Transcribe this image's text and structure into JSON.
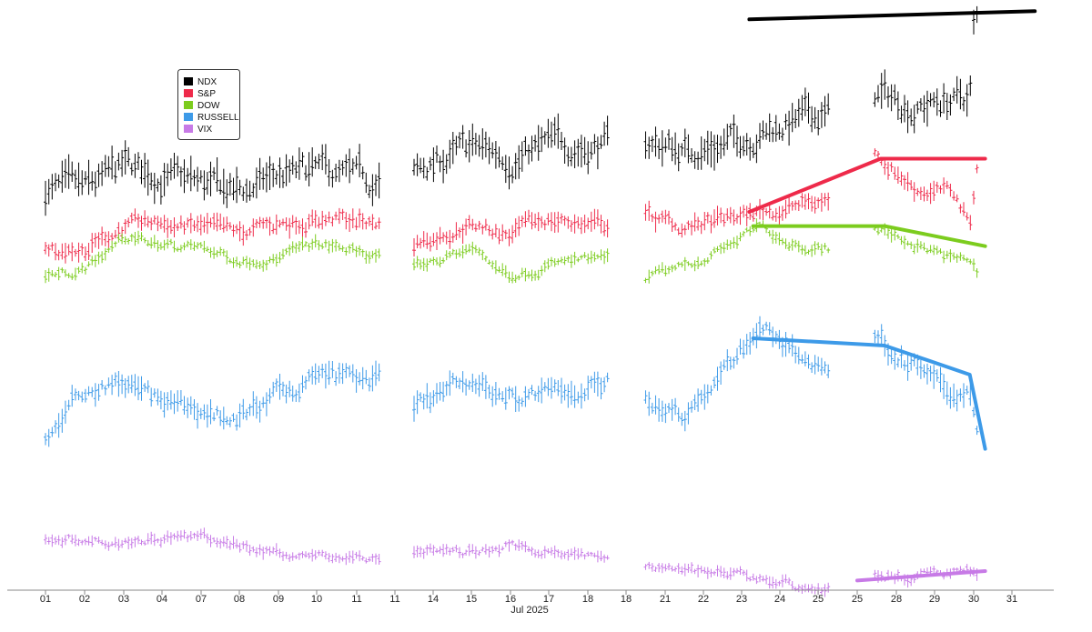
{
  "chart_data": {
    "type": "line",
    "subtype": "ohlc-bars-normalized",
    "month_label": "Jul 2025",
    "x_ticks": [
      "01",
      "02",
      "03",
      "04",
      "07",
      "08",
      "09",
      "10",
      "11",
      "11",
      "14",
      "15",
      "16",
      "17",
      "18",
      "18",
      "21",
      "22",
      "23",
      "24",
      "25",
      "25",
      "28",
      "29",
      "30",
      "31"
    ],
    "legend_position": "top-left",
    "grid": false,
    "series": [
      {
        "name": "NDX",
        "color": "#000000"
      },
      {
        "name": "S&P",
        "color": "#ee2a4a"
      },
      {
        "name": "DOW",
        "color": "#7ccc1e"
      },
      {
        "name": "RUSSELL",
        "color": "#3d9ae8"
      },
      {
        "name": "VIX",
        "color": "#c77ae6"
      }
    ],
    "trendlines": [
      {
        "series": "NDX",
        "color": "#000000",
        "points": [
          [
            18.2,
            0.95
          ],
          [
            25.6,
            0.99
          ]
        ]
      },
      {
        "series": "S&P",
        "color": "#ee2a4a",
        "points": [
          [
            18.2,
            0.4
          ],
          [
            21.6,
            0.85
          ],
          [
            24.3,
            0.85
          ]
        ]
      },
      {
        "series": "DOW",
        "color": "#7ccc1e",
        "points": [
          [
            18.3,
            0.84
          ],
          [
            21.7,
            0.84
          ],
          [
            24.3,
            0.58
          ]
        ]
      },
      {
        "series": "RUSSELL",
        "color": "#3d9ae8",
        "points": [
          [
            18.3,
            0.8
          ],
          [
            21.7,
            0.75
          ],
          [
            23.9,
            0.55
          ],
          [
            24.3,
            0.04
          ]
        ]
      },
      {
        "series": "VIX",
        "color": "#c77ae6",
        "points": [
          [
            21.0,
            0.02
          ],
          [
            24.3,
            0.15
          ]
        ]
      }
    ]
  }
}
